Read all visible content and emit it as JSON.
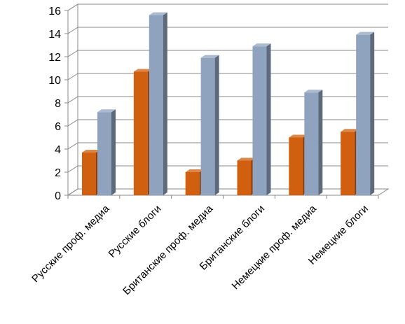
{
  "chart_data": {
    "type": "bar",
    "title": "",
    "xlabel": "",
    "ylabel": "",
    "categories": [
      "Русские проф. медиа",
      "Русские блоги",
      "Британские проф. медиа",
      "Британские блоги",
      "Немецкие проф. медиа",
      "Немецкие блоги"
    ],
    "series": [
      {
        "values": [
          3.7,
          10.7,
          2.0,
          3.0,
          5.0,
          5.5
        ],
        "color": "#D0600F"
      },
      {
        "values": [
          7.2,
          15.6,
          11.9,
          12.9,
          8.9,
          13.9
        ],
        "color": "#8FA3BF"
      }
    ],
    "ylim": [
      0,
      16
    ],
    "yticks": [
      0,
      2,
      4,
      6,
      8,
      10,
      12,
      14,
      16
    ],
    "grid": true,
    "legend": "none",
    "style": "3d-clustered-column"
  }
}
